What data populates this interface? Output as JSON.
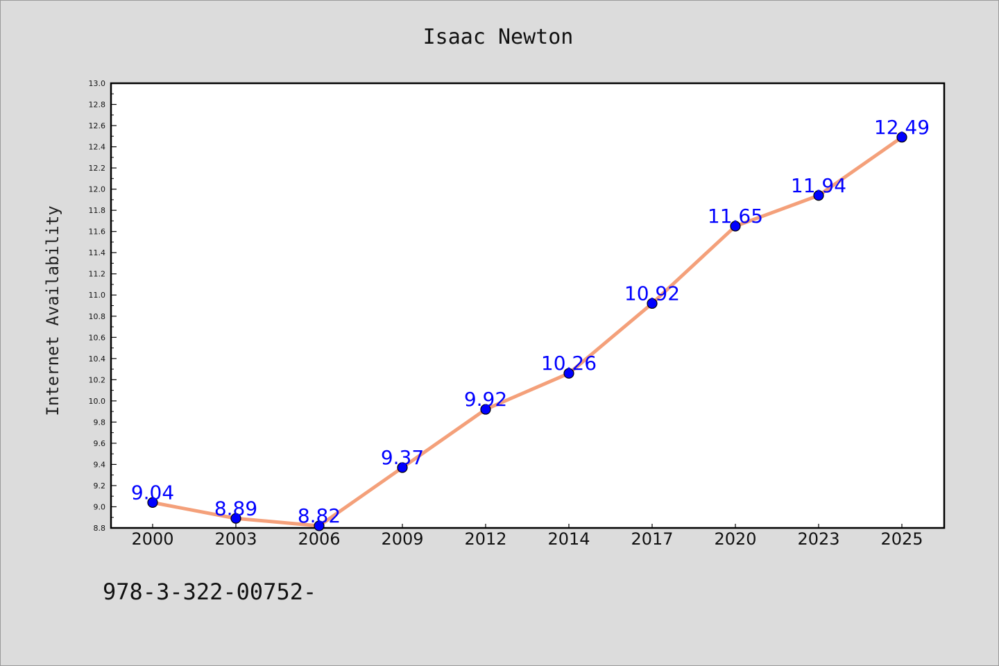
{
  "chart_data": {
    "type": "line",
    "title": "Isaac Newton",
    "xlabel": "",
    "ylabel": "Internet Availability",
    "categories": [
      "2000",
      "2003",
      "2006",
      "2009",
      "2012",
      "2014",
      "2017",
      "2020",
      "2023",
      "2025"
    ],
    "values": [
      9.04,
      8.89,
      8.82,
      9.37,
      9.92,
      10.26,
      10.92,
      11.65,
      11.94,
      12.49
    ],
    "data_labels": [
      "9.04",
      "8.89",
      "8.82",
      "9.37",
      "9.92",
      "10.26",
      "10.92",
      "11.65",
      "11.94",
      "12.49"
    ],
    "ylim": [
      8.8,
      13.0
    ],
    "yticks": [
      "8.8",
      "9.0",
      "9.2",
      "9.4",
      "9.6",
      "9.8",
      "10.0",
      "10.2",
      "10.4",
      "10.6",
      "10.8",
      "11.0",
      "11.2",
      "11.4",
      "11.6",
      "11.8",
      "12.0",
      "12.2",
      "12.4",
      "12.6",
      "12.8",
      "13.0"
    ],
    "grid": false,
    "line_color": "#f4a07a",
    "marker_color": "#0000ff",
    "label_color": "#0000ff"
  },
  "footer": {
    "text": "978-3-322-00752-"
  }
}
